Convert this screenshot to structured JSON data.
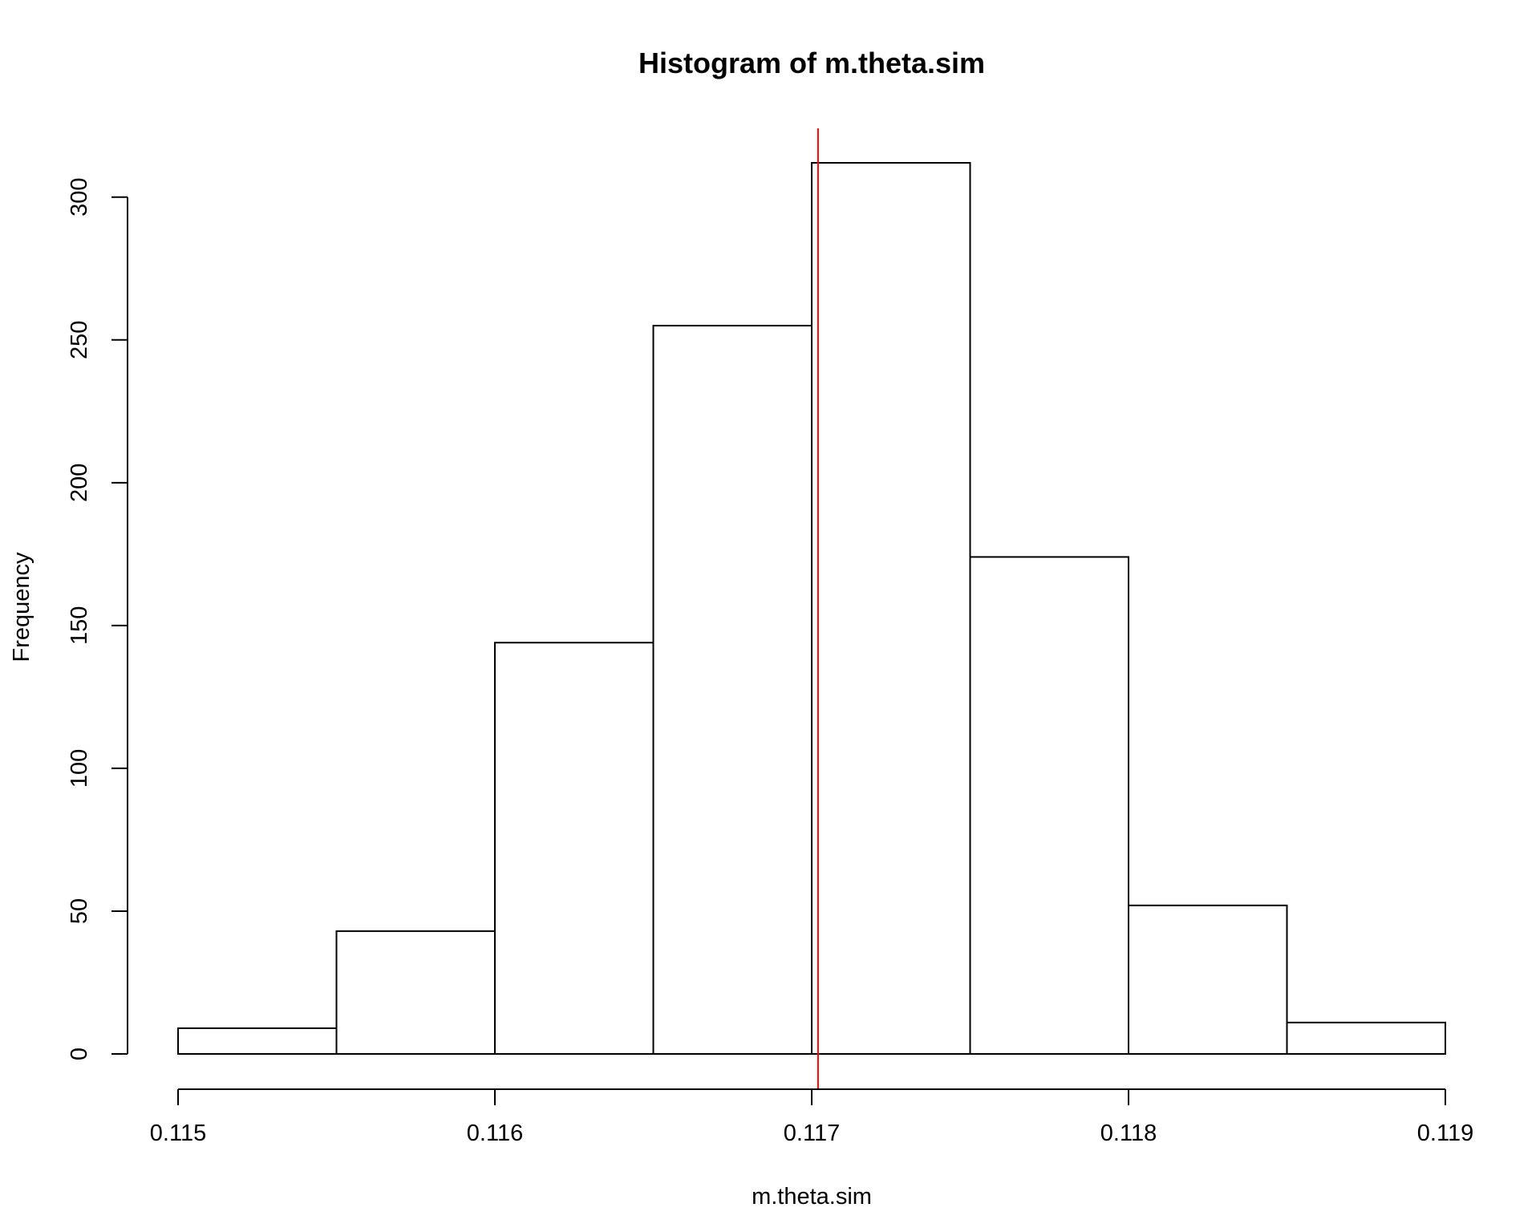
{
  "chart_data": {
    "type": "bar",
    "title": "Histogram of m.theta.sim",
    "xlabel": "m.theta.sim",
    "ylabel": "Frequency",
    "bins": [
      {
        "start": 0.115,
        "end": 0.1155,
        "count": 9
      },
      {
        "start": 0.1155,
        "end": 0.116,
        "count": 43
      },
      {
        "start": 0.116,
        "end": 0.1165,
        "count": 144
      },
      {
        "start": 0.1165,
        "end": 0.117,
        "count": 255
      },
      {
        "start": 0.117,
        "end": 0.1175,
        "count": 312
      },
      {
        "start": 0.1175,
        "end": 0.118,
        "count": 174
      },
      {
        "start": 0.118,
        "end": 0.1185,
        "count": 52
      },
      {
        "start": 0.1185,
        "end": 0.119,
        "count": 11
      }
    ],
    "xlim": [
      0.115,
      0.119
    ],
    "ylim": [
      0,
      312
    ],
    "xticks": [
      0.115,
      0.116,
      0.117,
      0.118,
      0.119
    ],
    "xtick_labels": [
      "0.115",
      "0.116",
      "0.117",
      "0.118",
      "0.119"
    ],
    "yticks": [
      0,
      50,
      100,
      150,
      200,
      250,
      300
    ],
    "ytick_labels": [
      "0",
      "50",
      "100",
      "150",
      "200",
      "250",
      "300"
    ],
    "reference_line": {
      "orientation": "vertical",
      "x": 0.11702,
      "color": "#ff0000"
    },
    "grid": false,
    "bar_fill": "#ffffff",
    "bar_stroke": "#000000"
  }
}
